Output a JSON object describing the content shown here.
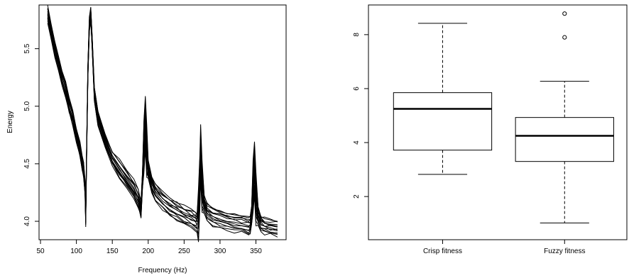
{
  "chart_data": [
    {
      "type": "line",
      "title": "",
      "xlabel": "Frequency (Hz)",
      "ylabel": "Energy",
      "xlim": [
        48,
        392
      ],
      "ylim": [
        3.84,
        5.88
      ],
      "x_ticks": [
        50,
        100,
        150,
        200,
        250,
        300,
        350
      ],
      "y_ticks": [
        4.0,
        4.5,
        5.0,
        5.5
      ],
      "x_tick_labels": [
        "50",
        "100",
        "150",
        "200",
        "250",
        "300",
        "350"
      ],
      "y_tick_labels": [
        "4.0",
        "4.5",
        "5.0",
        "5.5"
      ],
      "grid": false,
      "series_count": 14,
      "peaks_hz": [
        120,
        196,
        273,
        348
      ],
      "series_profile": {
        "x": [
          60,
          65,
          70,
          75,
          80,
          85,
          90,
          95,
          100,
          105,
          108,
          110,
          112,
          113,
          114,
          116,
          118,
          120,
          122,
          125,
          130,
          140,
          150,
          160,
          170,
          180,
          186,
          188,
          190,
          192,
          194,
          196,
          198,
          200,
          205,
          210,
          220,
          230,
          240,
          250,
          260,
          266,
          268,
          270,
          272,
          273,
          275,
          278,
          282,
          290,
          300,
          310,
          320,
          330,
          340,
          342,
          344,
          346,
          348,
          350,
          353,
          357,
          362,
          370,
          380
        ],
        "y": [
          5.8,
          5.65,
          5.5,
          5.38,
          5.25,
          5.15,
          5.0,
          4.9,
          4.75,
          4.62,
          4.5,
          4.45,
          4.3,
          4.02,
          4.5,
          5.3,
          5.7,
          5.8,
          5.55,
          5.1,
          4.9,
          4.7,
          4.55,
          4.45,
          4.37,
          4.28,
          4.2,
          4.15,
          4.1,
          4.35,
          4.65,
          4.85,
          4.6,
          4.45,
          4.32,
          4.25,
          4.18,
          4.13,
          4.09,
          4.05,
          4.02,
          4.0,
          3.98,
          4.05,
          4.35,
          4.6,
          4.3,
          4.15,
          4.08,
          4.04,
          4.02,
          4.0,
          3.99,
          3.98,
          3.96,
          3.97,
          4.05,
          4.3,
          4.45,
          4.2,
          4.05,
          3.98,
          3.96,
          3.95,
          3.94
        ]
      }
    },
    {
      "type": "box",
      "title": "",
      "xlabel": "",
      "ylabel": "",
      "ylim": [
        0.4,
        9.1
      ],
      "y_ticks": [
        2,
        4,
        6,
        8
      ],
      "y_tick_labels": [
        "2",
        "4",
        "6",
        "8"
      ],
      "grid": false,
      "categories": [
        "Crisp fitness",
        "Fuzzy fitness"
      ],
      "boxes": [
        {
          "name": "Crisp fitness",
          "whisker_low": 2.82,
          "q1": 3.72,
          "median": 5.25,
          "q3": 5.85,
          "whisker_high": 8.42,
          "outliers": []
        },
        {
          "name": "Fuzzy fitness",
          "whisker_low": 1.02,
          "q1": 3.3,
          "median": 4.25,
          "q3": 4.93,
          "whisker_high": 6.27,
          "outliers": [
            7.9,
            8.78
          ]
        }
      ]
    }
  ]
}
